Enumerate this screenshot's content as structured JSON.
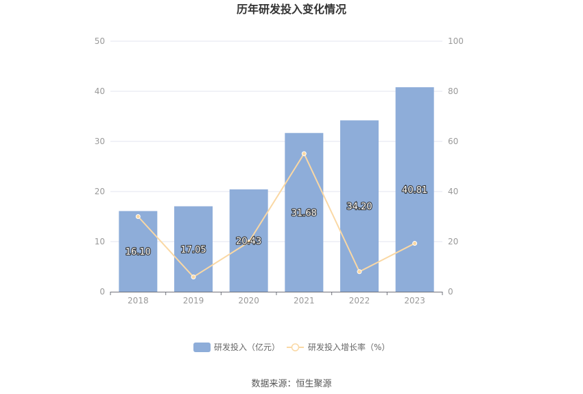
{
  "chart_data": {
    "type": "bar",
    "title": "历年研发投入变化情况",
    "categories": [
      "2018",
      "2019",
      "2020",
      "2021",
      "2022",
      "2023"
    ],
    "series": [
      {
        "name": "研发投入（亿元）",
        "type": "bar",
        "axis": "left",
        "values": [
          16.1,
          17.05,
          20.43,
          31.68,
          34.2,
          40.81
        ],
        "labels": [
          "16.10",
          "17.05",
          "20.43",
          "31.68",
          "34.20",
          "40.81"
        ],
        "color": "#8eadd9"
      },
      {
        "name": "研发投入增长率（%）",
        "type": "line",
        "axis": "right",
        "values": [
          30.0,
          5.9,
          19.8,
          55.1,
          8.0,
          19.3
        ],
        "color": "#fad8a4"
      }
    ],
    "y_left": {
      "min": 0,
      "max": 50,
      "ticks": [
        "0",
        "10",
        "20",
        "30",
        "40",
        "50"
      ]
    },
    "y_right": {
      "min": 0,
      "max": 100,
      "ticks": [
        "0",
        "20",
        "40",
        "60",
        "80",
        "100"
      ]
    },
    "grid": true,
    "legend_position": "bottom"
  },
  "source_text": "数据来源：恒生聚源"
}
